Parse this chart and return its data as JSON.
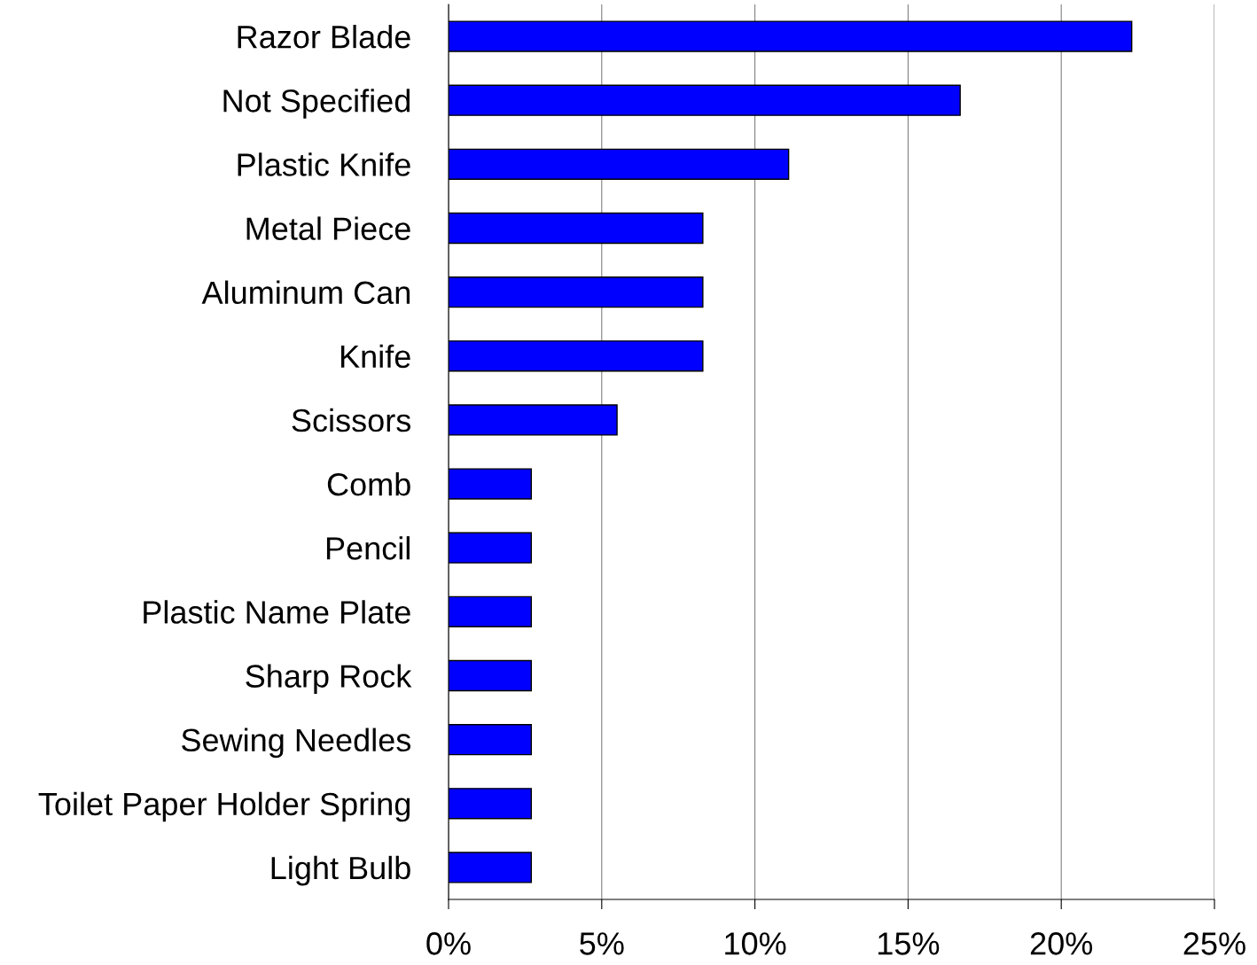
{
  "chart_data": {
    "type": "bar",
    "orientation": "horizontal",
    "categories": [
      "Razor Blade",
      "Not Specified",
      "Plastic Knife",
      "Metal Piece",
      "Aluminum Can",
      "Knife",
      "Scissors",
      "Comb",
      "Pencil",
      "Plastic Name Plate",
      "Sharp Rock",
      "Sewing Needles",
      "Toilet Paper Holder Spring",
      "Light Bulb"
    ],
    "values": [
      22.3,
      16.7,
      11.1,
      8.3,
      8.3,
      8.3,
      5.5,
      2.7,
      2.7,
      2.7,
      2.7,
      2.7,
      2.7,
      2.7
    ],
    "color": "#0000ff",
    "xlim": [
      0,
      25
    ],
    "xticks": [
      {
        "value": 0,
        "label": "0%"
      },
      {
        "value": 5,
        "label": "5%"
      },
      {
        "value": 10,
        "label": "10%"
      },
      {
        "value": 15,
        "label": "15%"
      },
      {
        "value": 20,
        "label": "20%"
      },
      {
        "value": 25,
        "label": "25%"
      }
    ],
    "grid": "x",
    "legend": false
  }
}
